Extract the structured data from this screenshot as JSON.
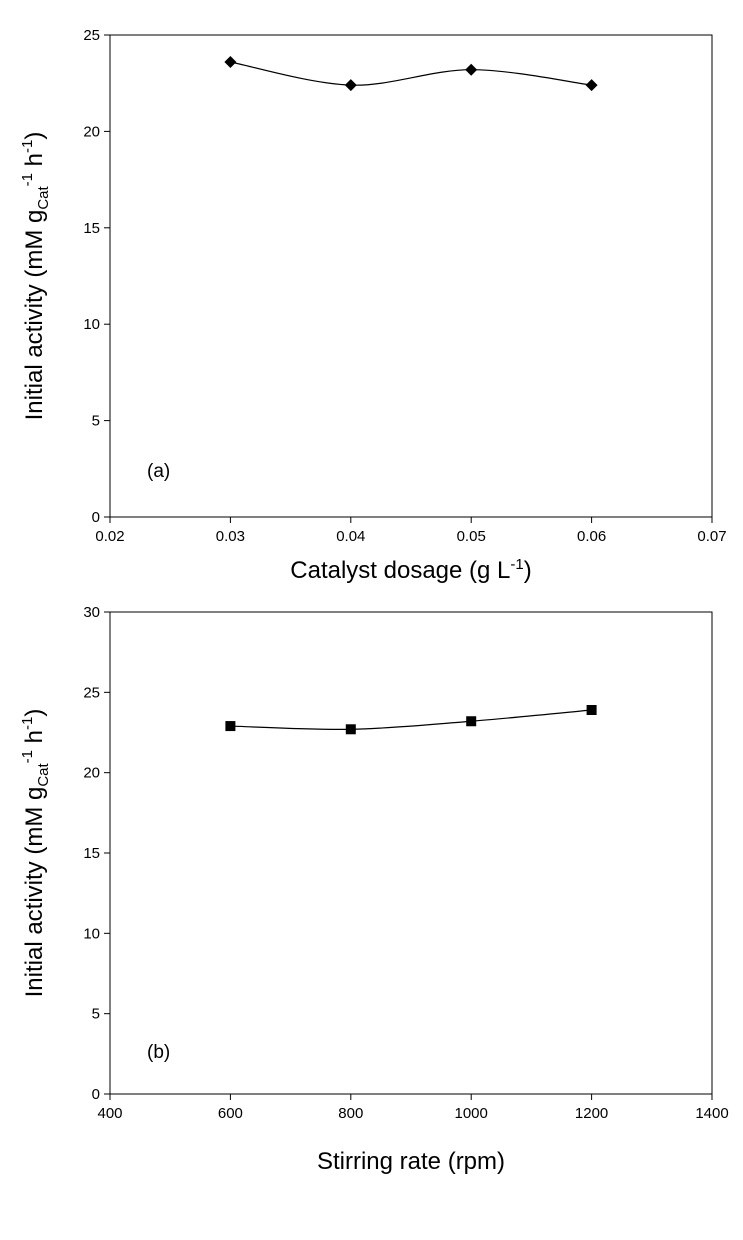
{
  "chart_data": [
    {
      "type": "line",
      "panel_label": "(a)",
      "x": [
        0.03,
        0.04,
        0.05,
        0.06
      ],
      "series": [
        {
          "values": [
            23.6,
            22.4,
            23.2,
            22.4
          ],
          "marker": "diamond"
        }
      ],
      "xlim": [
        0.02,
        0.07
      ],
      "ylim": [
        0,
        25
      ],
      "xticks": [
        "0.02",
        "0.03",
        "0.04",
        "0.05",
        "0.06",
        "0.07"
      ],
      "yticks": [
        "0",
        "5",
        "10",
        "15",
        "20",
        "25"
      ],
      "xlabel": {
        "main": "Catalyst dosage (g L",
        "sup": "-1",
        "tail": ")"
      },
      "ylabel": {
        "p1": "Initial activity (mM g",
        "sub": "Cat",
        "sup1": "-1",
        "p2": " h",
        "sup2": "-1",
        "p3": ")"
      },
      "grid": false,
      "smooth": true
    },
    {
      "type": "line",
      "panel_label": "(b)",
      "x": [
        600,
        800,
        1000,
        1200
      ],
      "series": [
        {
          "values": [
            22.9,
            22.7,
            23.2,
            23.9
          ],
          "marker": "square"
        }
      ],
      "xlim": [
        400,
        1400
      ],
      "ylim": [
        0,
        30
      ],
      "xticks": [
        "400",
        "600",
        "800",
        "1000",
        "1200",
        "1400"
      ],
      "yticks": [
        "0",
        "5",
        "10",
        "15",
        "20",
        "25",
        "30"
      ],
      "xlabel": {
        "main": "Stirring rate (rpm)",
        "sup": "",
        "tail": ""
      },
      "ylabel": {
        "p1": "Initial activity (mM g",
        "sub": "Cat",
        "sup1": "-1",
        "p2": " h",
        "sup2": "-1",
        "p3": ")"
      },
      "grid": false,
      "smooth": true
    }
  ]
}
